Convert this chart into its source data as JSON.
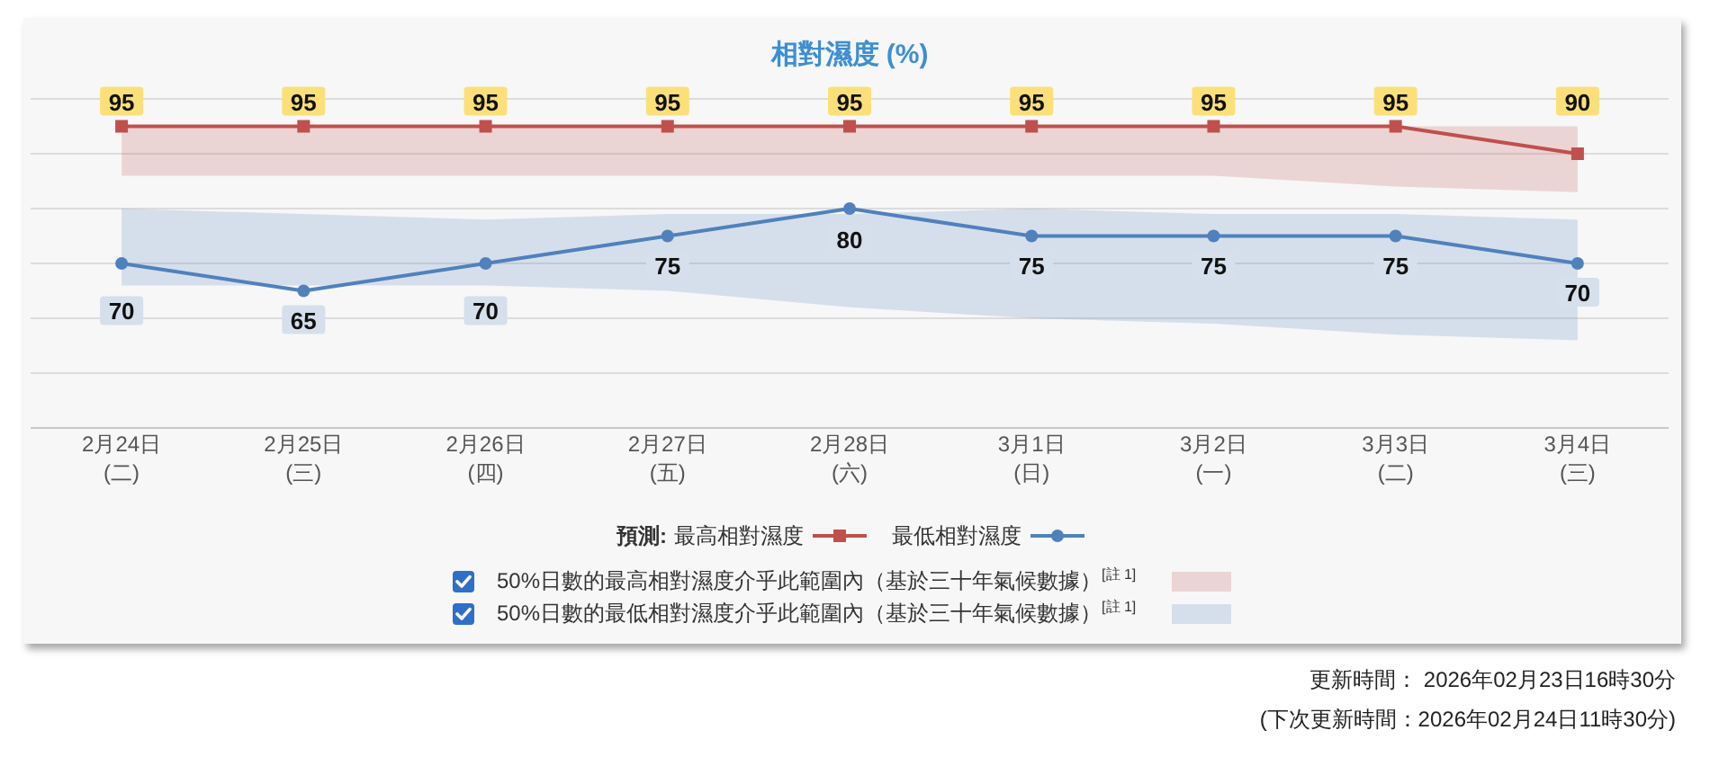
{
  "chart_data": {
    "type": "line",
    "title": "相對濕度 (%)",
    "categories": [
      "2月24日\n(二)",
      "2月25日\n(三)",
      "2月26日\n(四)",
      "2月27日\n(五)",
      "2月28日\n(六)",
      "3月1日\n(日)",
      "3月2日\n(一)",
      "3月3日\n(二)",
      "3月4日\n(三)"
    ],
    "series": [
      {
        "name": "最高相對濕度",
        "color": "#c0504d",
        "marker": "square",
        "values": [
          95,
          95,
          95,
          95,
          95,
          95,
          95,
          95,
          90
        ],
        "lower": [
          86,
          86,
          86,
          86,
          86,
          86,
          86,
          84,
          83
        ],
        "upper": [
          95,
          95,
          95,
          95,
          95,
          95,
          95,
          95,
          95
        ]
      },
      {
        "name": "最低相對濕度",
        "color": "#4f81bd",
        "marker": "circle",
        "values": [
          70,
          65,
          70,
          75,
          80,
          75,
          75,
          75,
          70
        ],
        "lower": [
          66,
          66,
          66,
          65,
          62,
          60,
          59,
          57,
          56
        ],
        "upper": [
          80,
          79,
          78,
          79,
          79,
          80,
          79,
          79,
          78
        ]
      }
    ],
    "ylim": [
      40,
      100
    ],
    "yticks": [
      {
        "value": 40,
        "label": null
      },
      {
        "value": 50,
        "label": null
      },
      {
        "value": 60,
        "label": null
      },
      {
        "value": 70,
        "label": null
      },
      {
        "value": 80,
        "label": null
      },
      {
        "value": 90,
        "label": null
      },
      {
        "value": 100,
        "label": null
      }
    ],
    "grid": "y",
    "tick_labels": "x",
    "legend": "bottom",
    "legend_title": "預測:",
    "data_labels": true,
    "annotations": [
      "50%日數的最高相對濕度介乎此範圍內（基於三十年氣候數據）$^{[註 1]}$",
      "50%日數的最低相對濕度介乎此範圍內（基於三十年氣候數據）$^{[註 1]}$",
      "更新時間： 2026年02月23日16時30分",
      "(下次更新時間：2026年02月24日11時30分)"
    ]
  }
}
